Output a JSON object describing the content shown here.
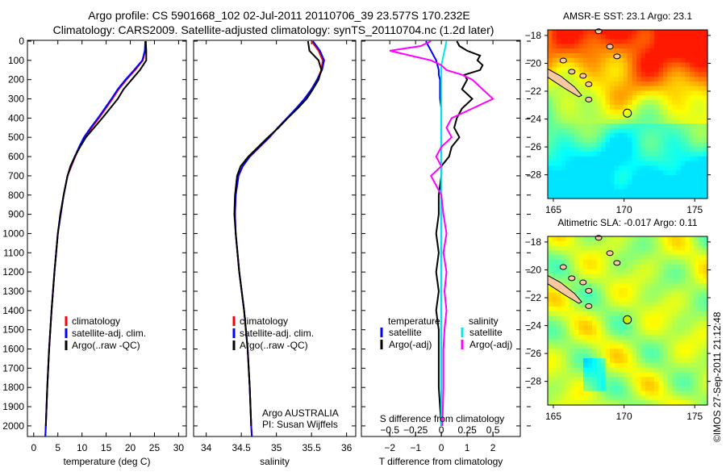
{
  "title_line1": "Argo profile: CS 5901668_102 02-Jul-2011 20110706_39 23.577S 170.232E",
  "title_line2": "Climatology: CARS2009. Satellite-adjusted climatology: synTS_20110704.nc (1.2d later)",
  "watermark": "©IMOS 27-Sep-2011 21:12:48",
  "chart_data": [
    {
      "type": "line",
      "title": "",
      "xlabel": "temperature (deg C)",
      "ylabel": "",
      "xlim": [
        -1.3,
        31.6
      ],
      "ylim": [
        2055,
        0
      ],
      "xticks": [
        0,
        5,
        10,
        15,
        20,
        25,
        30
      ],
      "yticks": [
        0,
        100,
        200,
        300,
        400,
        500,
        600,
        700,
        800,
        900,
        1000,
        1100,
        1200,
        1300,
        1400,
        1500,
        1600,
        1700,
        1800,
        1900,
        2000
      ],
      "legend": {
        "placement": "bottom-center",
        "entries": [
          "climatology",
          "satellite-adj. clim.",
          "Argo(..raw -QC)"
        ]
      },
      "depth": [
        0,
        50,
        100,
        150,
        200,
        250,
        300,
        350,
        400,
        450,
        500,
        550,
        600,
        650,
        700,
        800,
        900,
        1000,
        1200,
        1400,
        1600,
        1800,
        2000,
        2055
      ],
      "series": [
        {
          "name": "climatology",
          "color": "#ff0000",
          "values": [
            23.2,
            23.1,
            22.6,
            21.0,
            19.2,
            17.6,
            16.3,
            14.9,
            13.5,
            12.0,
            10.6,
            9.5,
            8.6,
            7.8,
            7.0,
            6.2,
            5.6,
            5.0,
            4.3,
            3.7,
            3.2,
            2.8,
            2.5,
            2.4
          ]
        },
        {
          "name": "satellite-adj. clim.",
          "color": "#0000ff",
          "values": [
            23.1,
            23.0,
            22.5,
            20.8,
            19.0,
            17.4,
            16.1,
            14.7,
            13.3,
            11.8,
            10.4,
            9.4,
            8.5,
            7.7,
            7.0,
            6.2,
            5.6,
            5.0,
            4.3,
            3.7,
            3.2,
            2.8,
            2.5,
            2.4
          ]
        },
        {
          "name": "Argo(..raw -QC)",
          "color": "#000000",
          "values": [
            23.2,
            23.3,
            23.3,
            22.0,
            20.3,
            18.6,
            17.4,
            15.8,
            14.2,
            12.5,
            10.8,
            9.6,
            8.5,
            7.6,
            7.0,
            6.2,
            5.5,
            5.0,
            4.3,
            3.7,
            3.2,
            2.8,
            2.5,
            null
          ]
        }
      ]
    },
    {
      "type": "line",
      "xlabel": "salinity",
      "xlim": [
        33.82,
        36.13
      ],
      "ylim": [
        2055,
        0
      ],
      "xticks": [
        34,
        34.5,
        35,
        35.5,
        36
      ],
      "legend": {
        "placement": "bottom-center",
        "entries": [
          "climatology",
          "satellite-adj. clim.",
          "Argo(..raw -QC)"
        ]
      },
      "annotation": [
        "Argo AUSTRALIA",
        "PI: Susan Wijffels"
      ],
      "depth": [
        0,
        50,
        100,
        150,
        200,
        250,
        300,
        350,
        400,
        450,
        500,
        550,
        600,
        650,
        700,
        800,
        900,
        1000,
        1200,
        1400,
        1600,
        1800,
        2000,
        2055
      ],
      "series": [
        {
          "name": "climatology",
          "color": "#ff0000",
          "values": [
            35.5,
            35.6,
            35.66,
            35.64,
            35.58,
            35.5,
            35.4,
            35.28,
            35.15,
            35.02,
            34.9,
            34.76,
            34.62,
            34.52,
            34.46,
            34.42,
            34.41,
            34.42,
            34.47,
            34.54,
            34.59,
            34.62,
            34.64,
            34.65
          ]
        },
        {
          "name": "satellite-adj. clim.",
          "color": "#0000ff",
          "values": [
            35.52,
            35.62,
            35.68,
            35.65,
            35.58,
            35.5,
            35.4,
            35.28,
            35.15,
            35.02,
            34.9,
            34.76,
            34.62,
            34.52,
            34.46,
            34.42,
            34.41,
            34.42,
            34.47,
            34.54,
            34.59,
            34.62,
            34.64,
            34.65
          ]
        },
        {
          "name": "Argo(..raw -QC)",
          "color": "#000000",
          "values": [
            35.45,
            35.47,
            35.6,
            35.64,
            35.6,
            35.52,
            35.43,
            35.3,
            35.16,
            35.03,
            34.88,
            34.74,
            34.6,
            34.49,
            34.44,
            34.41,
            34.4,
            34.42,
            34.47,
            34.54,
            34.59,
            34.62,
            34.64,
            null
          ]
        }
      ]
    },
    {
      "type": "line",
      "xlabel": "T difference from climatology",
      "xlabel2": "S difference from climatology",
      "xlim": [
        -3.1,
        3.06
      ],
      "ylim": [
        2055,
        0
      ],
      "xticks": [
        -2,
        -1,
        0,
        1,
        2
      ],
      "xticks2": [
        -0.5,
        -0.25,
        0,
        0.25,
        0.5
      ],
      "legend": {
        "placement": "bottom",
        "entries": [
          "temperature",
          "satellite",
          "Argo(-adj)",
          "salinity",
          "satellite",
          "Argo(-adj)"
        ]
      },
      "depth": [
        0,
        25,
        50,
        75,
        100,
        125,
        150,
        175,
        200,
        250,
        300,
        350,
        400,
        450,
        500,
        550,
        600,
        650,
        700,
        800,
        900,
        1000,
        1100,
        1200,
        1300,
        1400,
        1500,
        1600,
        1800,
        2000
      ],
      "series": [
        {
          "name": "temperature satellite",
          "color": "#0000ff",
          "values": [
            -0.6,
            -0.5,
            -0.4,
            -0.3,
            -0.2,
            -0.15,
            -0.1,
            -0.1,
            -0.05,
            -0.05,
            -0.05,
            0,
            0,
            0,
            0,
            0,
            0,
            0,
            0,
            0,
            0,
            0,
            0,
            0,
            0,
            0,
            0,
            0,
            0,
            0
          ]
        },
        {
          "name": "temperature Argo(-adj)",
          "color": "#000000",
          "values": [
            0.6,
            0.7,
            1.0,
            1.5,
            1.4,
            1.6,
            1.5,
            0.9,
            1.0,
            0.8,
            1.2,
            0.8,
            0.6,
            0.5,
            0.7,
            0.4,
            0.3,
            0.0,
            0.0,
            -0.1,
            -0.1,
            -0.2,
            -0.1,
            -0.2,
            -0.1,
            -0.2,
            -0.1,
            -0.1,
            -0.1,
            0
          ]
        },
        {
          "name": "salinity satellite",
          "color": "#00e8e8",
          "values": [
            0.05,
            0.04,
            0.03,
            0.02,
            0.01,
            0,
            0,
            0,
            0,
            0,
            0,
            0,
            0,
            0,
            0,
            0,
            0,
            0,
            0,
            0,
            0,
            0,
            0,
            0,
            0,
            0,
            0,
            0,
            0,
            0
          ]
        },
        {
          "name": "salinity Argo(-adj)",
          "color": "#ff00ff",
          "values": [
            -0.1,
            -0.2,
            -0.5,
            -0.3,
            -0.1,
            0.0,
            0.05,
            0.2,
            0.3,
            0.4,
            0.5,
            0.3,
            0.1,
            0.05,
            0.1,
            0.0,
            -0.05,
            0.0,
            -0.1,
            0.0,
            0.02,
            0.05,
            0.02,
            0.05,
            0.03,
            0.05,
            0.03,
            0.02,
            0.02,
            0.01
          ]
        }
      ]
    },
    {
      "type": "heatmap",
      "title": "AMSR-E SST: 23.1 Argo: 23.1",
      "xlim": [
        164.6,
        175.9
      ],
      "ylim": [
        -29.7,
        -17.6
      ],
      "xticks": [
        165,
        170,
        175
      ],
      "yticks": [
        -18,
        -20,
        -22,
        -24,
        -26,
        -28
      ],
      "marker": {
        "lon": 170.232,
        "lat": -23.577
      }
    },
    {
      "type": "heatmap",
      "title": "Altimetric SLA: -0.017 Argo: 0.11",
      "xlim": [
        164.6,
        175.9
      ],
      "ylim": [
        -29.7,
        -17.6
      ],
      "xticks": [
        165,
        170,
        175
      ],
      "yticks": [
        -18,
        -20,
        -22,
        -24,
        -26,
        -28
      ],
      "marker": {
        "lon": 170.232,
        "lat": -23.577
      }
    }
  ]
}
